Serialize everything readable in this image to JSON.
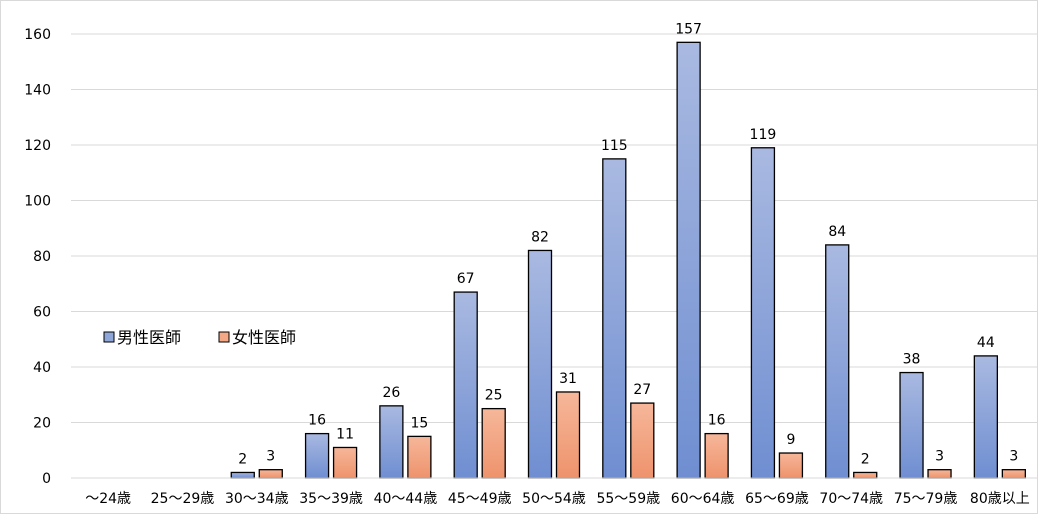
{
  "chart_data": {
    "type": "bar",
    "categories": [
      "～24歳",
      "25～29歳",
      "30～34歳",
      "35～39歳",
      "40～44歳",
      "45～49歳",
      "50～54歳",
      "55～59歳",
      "60～64歳",
      "65～69歳",
      "70～74歳",
      "75～79歳",
      "80歳以上"
    ],
    "series": [
      {
        "name": "男性医師",
        "values": [
          null,
          null,
          2,
          16,
          26,
          67,
          82,
          115,
          157,
          119,
          84,
          38,
          44
        ],
        "color": "#8FA6D8"
      },
      {
        "name": "女性医師",
        "values": [
          null,
          null,
          3,
          11,
          15,
          25,
          31,
          27,
          16,
          9,
          2,
          3,
          3
        ],
        "color": "#F4A886"
      }
    ],
    "ylim": [
      0,
      160
    ],
    "yticks": [
      0,
      20,
      40,
      60,
      80,
      100,
      120,
      140,
      160
    ],
    "grid": true,
    "legend": "left-middle"
  }
}
